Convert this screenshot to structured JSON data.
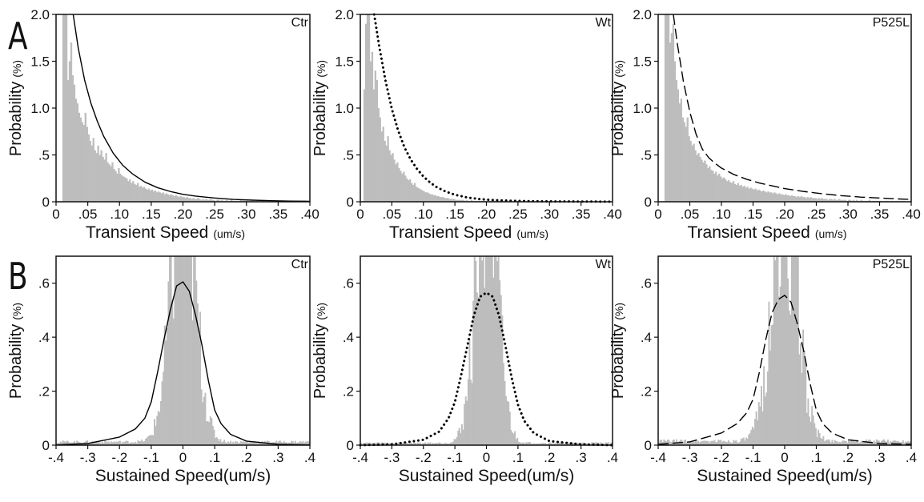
{
  "panel_labels": [
    "A",
    "B"
  ],
  "colors": {
    "histogram": "#bdbdbd",
    "fit": "#000000",
    "axis": "#111111",
    "background": "#ffffff"
  },
  "chart_data": [
    {
      "id": "A-ctr",
      "type": "bar",
      "tag": "Ctr",
      "xlabel": "Transient Speed",
      "xunit": "(um/s)",
      "ylabel": "Probability",
      "yunit": "(%)",
      "xlim": [
        0,
        0.4
      ],
      "ylim": [
        0,
        2.0
      ],
      "x_ticks": [
        0,
        0.05,
        0.1,
        0.15,
        0.2,
        0.25,
        0.3,
        0.35,
        0.4
      ],
      "x_tick_labels": [
        "0",
        ".05",
        ".10",
        ".15",
        ".20",
        ".25",
        ".30",
        ".35",
        ".40"
      ],
      "y_ticks": [
        0,
        0.5,
        1.0,
        1.5,
        2.0
      ],
      "y_tick_labels": [
        "0",
        ".5",
        "1.0",
        "1.5",
        "2.0"
      ],
      "histogram": {
        "start": 0.01,
        "bin_width": 0.0025,
        "values": [
          2.0,
          2.0,
          2.0,
          1.3,
          1.5,
          1.7,
          1.35,
          1.25,
          1.1,
          1.05,
          0.95,
          0.9,
          0.85,
          0.82,
          0.95,
          0.8,
          0.72,
          0.65,
          0.6,
          0.68,
          0.55,
          0.52,
          0.6,
          0.5,
          0.55,
          0.48,
          0.45,
          0.52,
          0.42,
          0.4,
          0.38,
          0.42,
          0.35,
          0.33,
          0.3,
          0.36,
          0.3,
          0.28,
          0.27,
          0.26,
          0.25,
          0.22,
          0.24,
          0.2,
          0.22,
          0.19,
          0.18,
          0.2,
          0.16,
          0.17,
          0.15,
          0.16,
          0.14,
          0.13,
          0.14,
          0.12,
          0.13,
          0.11,
          0.12,
          0.1,
          0.11,
          0.1,
          0.09,
          0.1,
          0.08,
          0.09,
          0.08,
          0.07,
          0.08,
          0.07,
          0.06,
          0.07,
          0.06,
          0.05,
          0.06,
          0.05,
          0.05,
          0.04,
          0.05,
          0.04,
          0.04,
          0.03,
          0.04,
          0.03,
          0.03,
          0.04,
          0.03,
          0.02,
          0.03,
          0.02,
          0.03,
          0.02,
          0.02,
          0.03,
          0.02,
          0.02,
          0.01,
          0.02,
          0.02,
          0.01,
          0.02,
          0.01,
          0.01,
          0.02,
          0.01,
          0.01,
          0.02,
          0.01,
          0.01,
          0.01,
          0.01,
          0.01,
          0.02,
          0.01,
          0.01,
          0.01,
          0.01,
          0.0,
          0.01,
          0.01,
          0.01,
          0.0,
          0.01,
          0.01,
          0.0,
          0.01,
          0.01,
          0.0,
          0.01,
          0.0,
          0.01,
          0.0,
          0.01,
          0.0,
          0.0,
          0.01,
          0.0,
          0.01,
          0.0,
          0.0,
          0.0,
          0.01,
          0.0,
          0.0,
          0.0,
          0.0
        ]
      },
      "fit": {
        "style": "solid",
        "x": [
          0.027,
          0.035,
          0.045,
          0.055,
          0.065,
          0.075,
          0.09,
          0.105,
          0.12,
          0.14,
          0.16,
          0.18,
          0.2,
          0.22,
          0.25,
          0.28,
          0.31,
          0.34,
          0.37,
          0.4
        ],
        "y": [
          2.0,
          1.64,
          1.3,
          1.05,
          0.86,
          0.7,
          0.52,
          0.39,
          0.3,
          0.21,
          0.15,
          0.11,
          0.08,
          0.06,
          0.04,
          0.025,
          0.017,
          0.011,
          0.007,
          0.005
        ]
      }
    },
    {
      "id": "A-wt",
      "type": "bar",
      "tag": "Wt",
      "xlabel": "Transient Speed",
      "xunit": "(um/s)",
      "ylabel": "Probability",
      "yunit": "(%)",
      "xlim": [
        0,
        0.4
      ],
      "ylim": [
        0,
        2.0
      ],
      "x_ticks": [
        0,
        0.05,
        0.1,
        0.15,
        0.2,
        0.25,
        0.3,
        0.35,
        0.4
      ],
      "x_tick_labels": [
        "0",
        ".05",
        ".10",
        ".15",
        ".20",
        ".25",
        ".30",
        ".35",
        ".40"
      ],
      "y_ticks": [
        0,
        0.5,
        1.0,
        1.5,
        2.0
      ],
      "y_tick_labels": [
        "0",
        ".5",
        "1.0",
        "1.5",
        "2.0"
      ],
      "histogram": {
        "start": 0.005,
        "bin_width": 0.0025,
        "values": [
          1.2,
          1.9,
          2.0,
          2.0,
          1.5,
          1.6,
          1.2,
          1.4,
          1.3,
          1.0,
          0.9,
          0.75,
          0.8,
          0.65,
          0.6,
          0.7,
          0.55,
          0.5,
          0.52,
          0.45,
          0.4,
          0.42,
          0.36,
          0.33,
          0.3,
          0.32,
          0.28,
          0.25,
          0.23,
          0.24,
          0.2,
          0.18,
          0.2,
          0.16,
          0.15,
          0.14,
          0.13,
          0.12,
          0.11,
          0.1,
          0.1,
          0.09,
          0.08,
          0.08,
          0.07,
          0.07,
          0.06,
          0.06,
          0.05,
          0.05,
          0.05,
          0.04,
          0.04,
          0.04,
          0.03,
          0.03,
          0.03,
          0.03,
          0.02,
          0.02,
          0.02,
          0.02,
          0.02,
          0.02,
          0.01,
          0.02,
          0.01,
          0.01,
          0.02,
          0.01,
          0.01,
          0.01,
          0.01,
          0.01,
          0.01,
          0.01,
          0.01,
          0.01,
          0.0,
          0.01,
          0.01,
          0.0,
          0.01,
          0.01,
          0.0,
          0.01,
          0.0,
          0.01,
          0.0,
          0.0,
          0.01,
          0.0,
          0.0,
          0.01,
          0.0,
          0.0,
          0.0,
          0.01,
          0.0,
          0.0,
          0.0,
          0.0,
          0.0,
          0.0,
          0.0,
          0.0,
          0.0,
          0.0,
          0.0,
          0.0,
          0.0,
          0.0,
          0.0,
          0.0,
          0.0,
          0.0,
          0.0,
          0.0,
          0.0,
          0.0,
          0.0,
          0.0,
          0.0,
          0.0,
          0.0,
          0.0,
          0.0,
          0.0,
          0.0,
          0.0,
          0.0,
          0.0,
          0.0,
          0.0,
          0.0,
          0.0,
          0.0,
          0.0,
          0.0,
          0.0,
          0.0,
          0.0,
          0.0,
          0.0,
          0.0,
          0.0,
          0.0,
          0.0,
          0.0,
          0.0,
          0.0,
          0.0,
          0.0,
          0.0,
          0.0,
          0.0,
          0.0
        ]
      },
      "fit": {
        "style": "dotted",
        "x": [
          0.022,
          0.03,
          0.04,
          0.05,
          0.06,
          0.07,
          0.08,
          0.09,
          0.1,
          0.11,
          0.12,
          0.135,
          0.15,
          0.17,
          0.19,
          0.21,
          0.24,
          0.27,
          0.3,
          0.33,
          0.36,
          0.4
        ],
        "y": [
          2.0,
          1.66,
          1.29,
          0.99,
          0.76,
          0.58,
          0.45,
          0.35,
          0.27,
          0.21,
          0.16,
          0.11,
          0.075,
          0.045,
          0.028,
          0.018,
          0.01,
          0.006,
          0.004,
          0.003,
          0.002,
          0.001
        ]
      }
    },
    {
      "id": "A-p525l",
      "type": "bar",
      "tag": "P525L",
      "xlabel": "Transient Speed",
      "xunit": "(um/s)",
      "ylabel": "Probability",
      "yunit": "(%)",
      "xlim": [
        0,
        0.4
      ],
      "ylim": [
        0,
        2.0
      ],
      "x_ticks": [
        0,
        0.05,
        0.1,
        0.15,
        0.2,
        0.25,
        0.3,
        0.35,
        0.4
      ],
      "x_tick_labels": [
        "0",
        ".05",
        ".10",
        ".15",
        ".20",
        ".25",
        ".30",
        ".35",
        ".40"
      ],
      "y_ticks": [
        0,
        0.5,
        1.0,
        1.5,
        2.0
      ],
      "y_tick_labels": [
        "0",
        ".5",
        "1.0",
        "1.5",
        "2.0"
      ],
      "histogram": {
        "start": 0.01,
        "bin_width": 0.0025,
        "values": [
          2.0,
          2.0,
          2.0,
          1.7,
          1.8,
          1.9,
          1.5,
          1.3,
          1.2,
          1.05,
          1.1,
          0.9,
          0.85,
          0.8,
          0.9,
          0.7,
          0.65,
          0.6,
          0.62,
          0.55,
          0.5,
          0.52,
          0.48,
          0.45,
          0.42,
          0.44,
          0.4,
          0.36,
          0.38,
          0.34,
          0.33,
          0.3,
          0.32,
          0.28,
          0.3,
          0.27,
          0.25,
          0.26,
          0.24,
          0.22,
          0.23,
          0.21,
          0.2,
          0.22,
          0.19,
          0.18,
          0.2,
          0.17,
          0.18,
          0.16,
          0.17,
          0.15,
          0.16,
          0.14,
          0.15,
          0.14,
          0.13,
          0.14,
          0.12,
          0.13,
          0.12,
          0.11,
          0.12,
          0.11,
          0.1,
          0.11,
          0.1,
          0.1,
          0.09,
          0.1,
          0.09,
          0.08,
          0.09,
          0.08,
          0.08,
          0.07,
          0.08,
          0.07,
          0.07,
          0.06,
          0.07,
          0.06,
          0.06,
          0.05,
          0.06,
          0.05,
          0.06,
          0.05,
          0.05,
          0.04,
          0.05,
          0.04,
          0.05,
          0.04,
          0.04,
          0.04,
          0.03,
          0.04,
          0.03,
          0.04,
          0.03,
          0.03,
          0.03,
          0.02,
          0.03,
          0.03,
          0.02,
          0.03,
          0.02,
          0.02,
          0.03,
          0.02,
          0.02,
          0.02,
          0.02,
          0.01,
          0.02,
          0.02,
          0.01,
          0.02,
          0.01,
          0.02,
          0.01,
          0.01,
          0.02,
          0.01,
          0.01,
          0.01,
          0.01,
          0.02,
          0.01,
          0.01,
          0.01,
          0.01,
          0.01,
          0.01,
          0.01,
          0.01,
          0.0,
          0.01,
          0.01,
          0.01,
          0.0,
          0.01,
          0.01,
          0.0,
          0.01,
          0.01,
          0.0,
          0.01,
          0.0,
          0.01,
          0.0,
          0.0
        ]
      },
      "fit": {
        "style": "dashed",
        "x": [
          0.024,
          0.03,
          0.04,
          0.05,
          0.06,
          0.07,
          0.08,
          0.09,
          0.1,
          0.12,
          0.14,
          0.16,
          0.18,
          0.2,
          0.23,
          0.26,
          0.29,
          0.32,
          0.35,
          0.38,
          0.4
        ],
        "y": [
          2.0,
          1.7,
          1.28,
          0.96,
          0.72,
          0.56,
          0.47,
          0.41,
          0.36,
          0.29,
          0.24,
          0.2,
          0.17,
          0.14,
          0.11,
          0.085,
          0.065,
          0.05,
          0.04,
          0.03,
          0.025
        ]
      }
    },
    {
      "id": "B-ctr",
      "type": "bar",
      "tag": "Ctr",
      "xlabel": "Sustained Speed(um/s)",
      "xunit": "",
      "ylabel": "Probability",
      "yunit": "(%)",
      "xlim": [
        -0.4,
        0.4
      ],
      "ylim": [
        0,
        0.7
      ],
      "x_ticks": [
        -0.4,
        -0.3,
        -0.2,
        -0.1,
        0,
        0.1,
        0.2,
        0.3,
        0.4
      ],
      "x_tick_labels": [
        "-.4",
        "-.3",
        "-.2",
        "-.1",
        "0",
        ".1",
        ".2",
        ".3",
        ".4"
      ],
      "y_ticks": [
        0,
        0.2,
        0.4,
        0.6
      ],
      "y_tick_labels": [
        "0",
        ".2",
        ".4",
        ".6"
      ],
      "histogram": {
        "center": 0.0,
        "amplitude": 0.95,
        "sigma": 0.038,
        "floor": 0.012,
        "bin_width": 0.004
      },
      "fit": {
        "style": "solid",
        "x": [
          -0.4,
          -0.3,
          -0.2,
          -0.15,
          -0.12,
          -0.1,
          -0.08,
          -0.06,
          -0.04,
          -0.02,
          0,
          0.02,
          0.04,
          0.06,
          0.08,
          0.1,
          0.12,
          0.15,
          0.2,
          0.3,
          0.4
        ],
        "y": [
          0.001,
          0.006,
          0.03,
          0.06,
          0.1,
          0.16,
          0.27,
          0.39,
          0.5,
          0.59,
          0.605,
          0.57,
          0.48,
          0.37,
          0.24,
          0.13,
          0.08,
          0.04,
          0.015,
          0.003,
          0.001
        ]
      }
    },
    {
      "id": "B-wt",
      "type": "bar",
      "tag": "Wt",
      "xlabel": "Sustained Speed(um/s)",
      "xunit": "",
      "ylabel": "Probability",
      "yunit": "(%)",
      "xlim": [
        -0.4,
        0.4
      ],
      "ylim": [
        0,
        0.7
      ],
      "x_ticks": [
        -0.4,
        -0.3,
        -0.2,
        -0.1,
        0,
        0.1,
        0.2,
        0.3,
        0.4
      ],
      "x_tick_labels": [
        "-.4",
        "-.3",
        "-.2",
        "-.1",
        "0",
        ".1",
        ".2",
        ".3",
        ".4"
      ],
      "y_ticks": [
        0,
        0.2,
        0.4,
        0.6
      ],
      "y_tick_labels": [
        "0",
        ".2",
        ".4",
        ".6"
      ],
      "histogram": {
        "center": 0.0,
        "amplitude": 1.0,
        "sigma": 0.034,
        "floor": 0.008,
        "bin_width": 0.004
      },
      "fit": {
        "style": "dotted",
        "x": [
          -0.4,
          -0.3,
          -0.2,
          -0.15,
          -0.12,
          -0.1,
          -0.08,
          -0.06,
          -0.04,
          -0.02,
          0,
          0.02,
          0.04,
          0.06,
          0.08,
          0.1,
          0.12,
          0.15,
          0.2,
          0.3,
          0.4
        ],
        "y": [
          0.0,
          0.003,
          0.02,
          0.05,
          0.1,
          0.16,
          0.26,
          0.37,
          0.48,
          0.55,
          0.565,
          0.55,
          0.48,
          0.37,
          0.25,
          0.15,
          0.09,
          0.045,
          0.015,
          0.003,
          0.0
        ]
      }
    },
    {
      "id": "B-p525l",
      "type": "bar",
      "tag": "P525L",
      "xlabel": "Sustained Speed(um/s)",
      "xunit": "",
      "ylabel": "Probability",
      "yunit": "(%)",
      "xlim": [
        -0.4,
        0.4
      ],
      "ylim": [
        0,
        0.7
      ],
      "x_ticks": [
        -0.4,
        -0.3,
        -0.2,
        -0.1,
        0,
        0.1,
        0.2,
        0.3,
        0.4
      ],
      "x_tick_labels": [
        "-.4",
        "-.3",
        "-.2",
        "-.1",
        "0",
        ".1",
        ".2",
        ".3",
        ".4"
      ],
      "y_ticks": [
        0,
        0.2,
        0.4,
        0.6
      ],
      "y_tick_labels": [
        "0",
        ".2",
        ".4",
        ".6"
      ],
      "histogram": {
        "center": 0.0,
        "amplitude": 0.9,
        "sigma": 0.04,
        "floor": 0.015,
        "bin_width": 0.004
      },
      "fit": {
        "style": "dashed",
        "x": [
          -0.4,
          -0.3,
          -0.2,
          -0.15,
          -0.12,
          -0.1,
          -0.08,
          -0.06,
          -0.04,
          -0.02,
          0,
          0.02,
          0.04,
          0.06,
          0.08,
          0.1,
          0.12,
          0.15,
          0.2,
          0.3,
          0.4
        ],
        "y": [
          0.003,
          0.012,
          0.045,
          0.08,
          0.12,
          0.17,
          0.27,
          0.39,
          0.49,
          0.54,
          0.555,
          0.53,
          0.45,
          0.35,
          0.23,
          0.13,
          0.08,
          0.045,
          0.02,
          0.006,
          0.003
        ]
      }
    }
  ]
}
